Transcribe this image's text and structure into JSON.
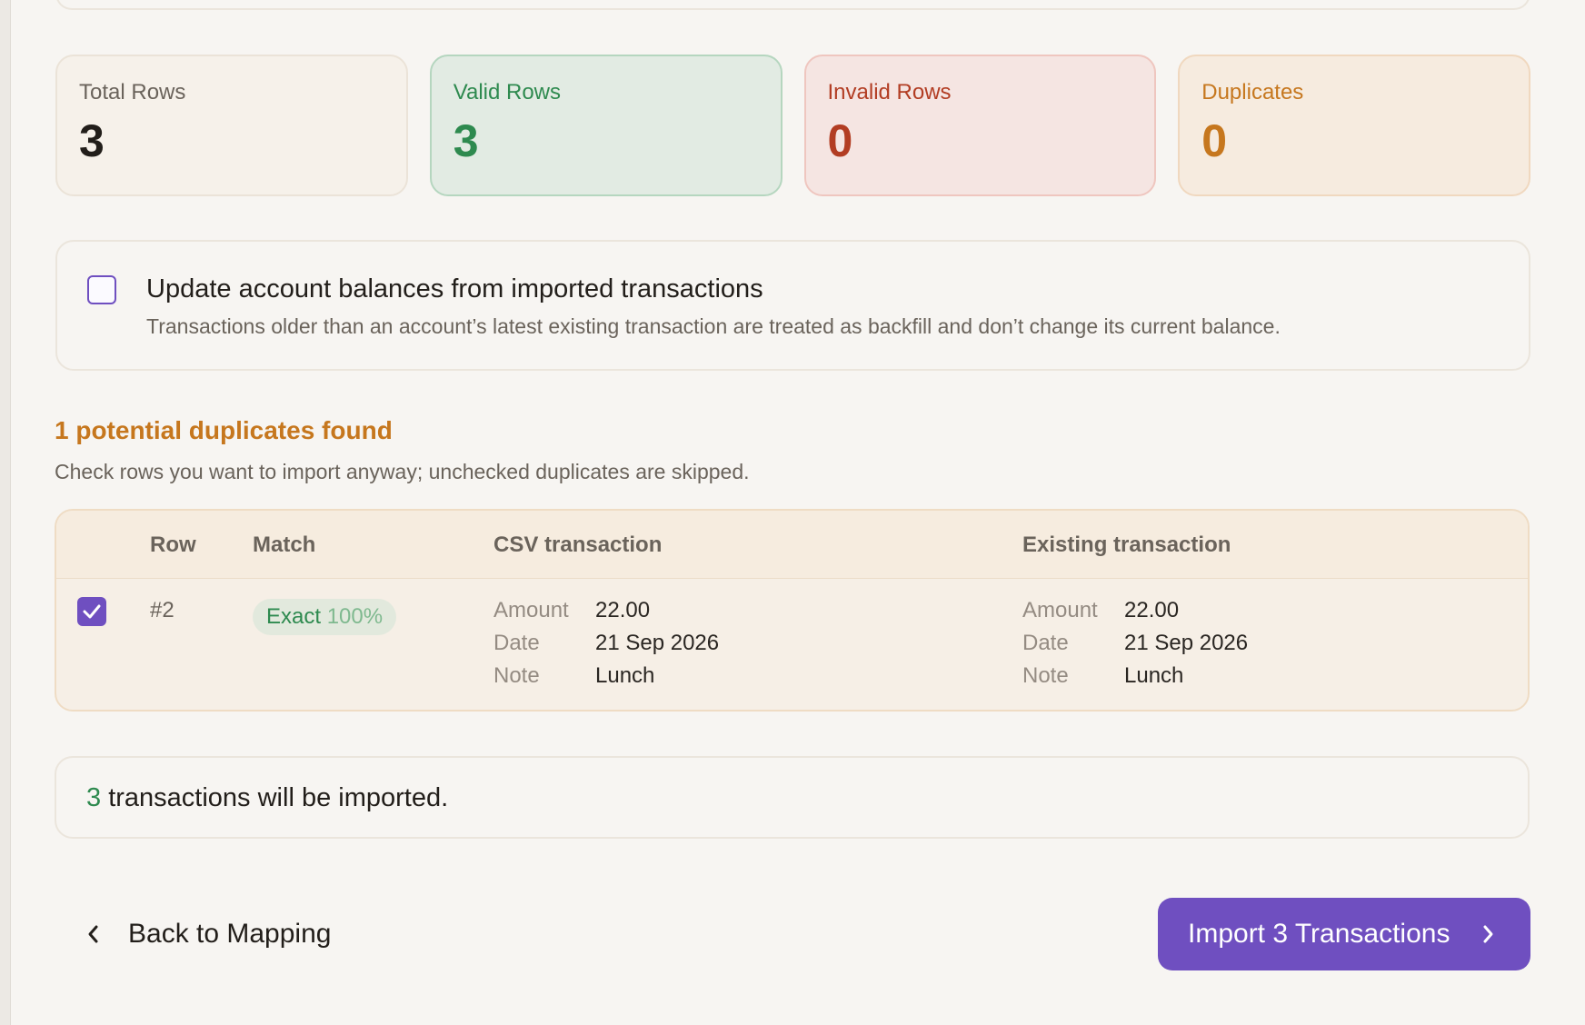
{
  "stats": {
    "total": {
      "label": "Total Rows",
      "value": "3"
    },
    "valid": {
      "label": "Valid Rows",
      "value": "3"
    },
    "invalid": {
      "label": "Invalid Rows",
      "value": "0"
    },
    "duplicates": {
      "label": "Duplicates",
      "value": "0"
    }
  },
  "balance_option": {
    "checked": false,
    "title": "Update account balances from imported transactions",
    "description": "Transactions older than an account’s latest existing transaction are treated as backfill and don’t change its current balance."
  },
  "duplicates_section": {
    "title": "1 potential duplicates found",
    "subtitle": "Check rows you want to import anyway; unchecked duplicates are skipped.",
    "columns": {
      "row": "Row",
      "match": "Match",
      "csv": "CSV transaction",
      "existing": "Existing transaction"
    },
    "rows": [
      {
        "checked": true,
        "row": "#2",
        "match_label": "Exact",
        "match_pct": "100%",
        "csv": {
          "amount_k": "Amount",
          "amount": "22.00",
          "date_k": "Date",
          "date": "21 Sep 2026",
          "note_k": "Note",
          "note": "Lunch"
        },
        "existing": {
          "amount_k": "Amount",
          "amount": "22.00",
          "date_k": "Date",
          "date": "21 Sep 2026",
          "note_k": "Note",
          "note": "Lunch"
        }
      }
    ]
  },
  "summary": {
    "count": "3",
    "text": "transactions will be imported."
  },
  "actions": {
    "back_label": "Back to Mapping",
    "import_label": "Import 3 Transactions"
  },
  "colors": {
    "accent": "#6f4fc0",
    "success": "#2e8a4f",
    "danger": "#b23d23",
    "warning": "#c6771e"
  }
}
